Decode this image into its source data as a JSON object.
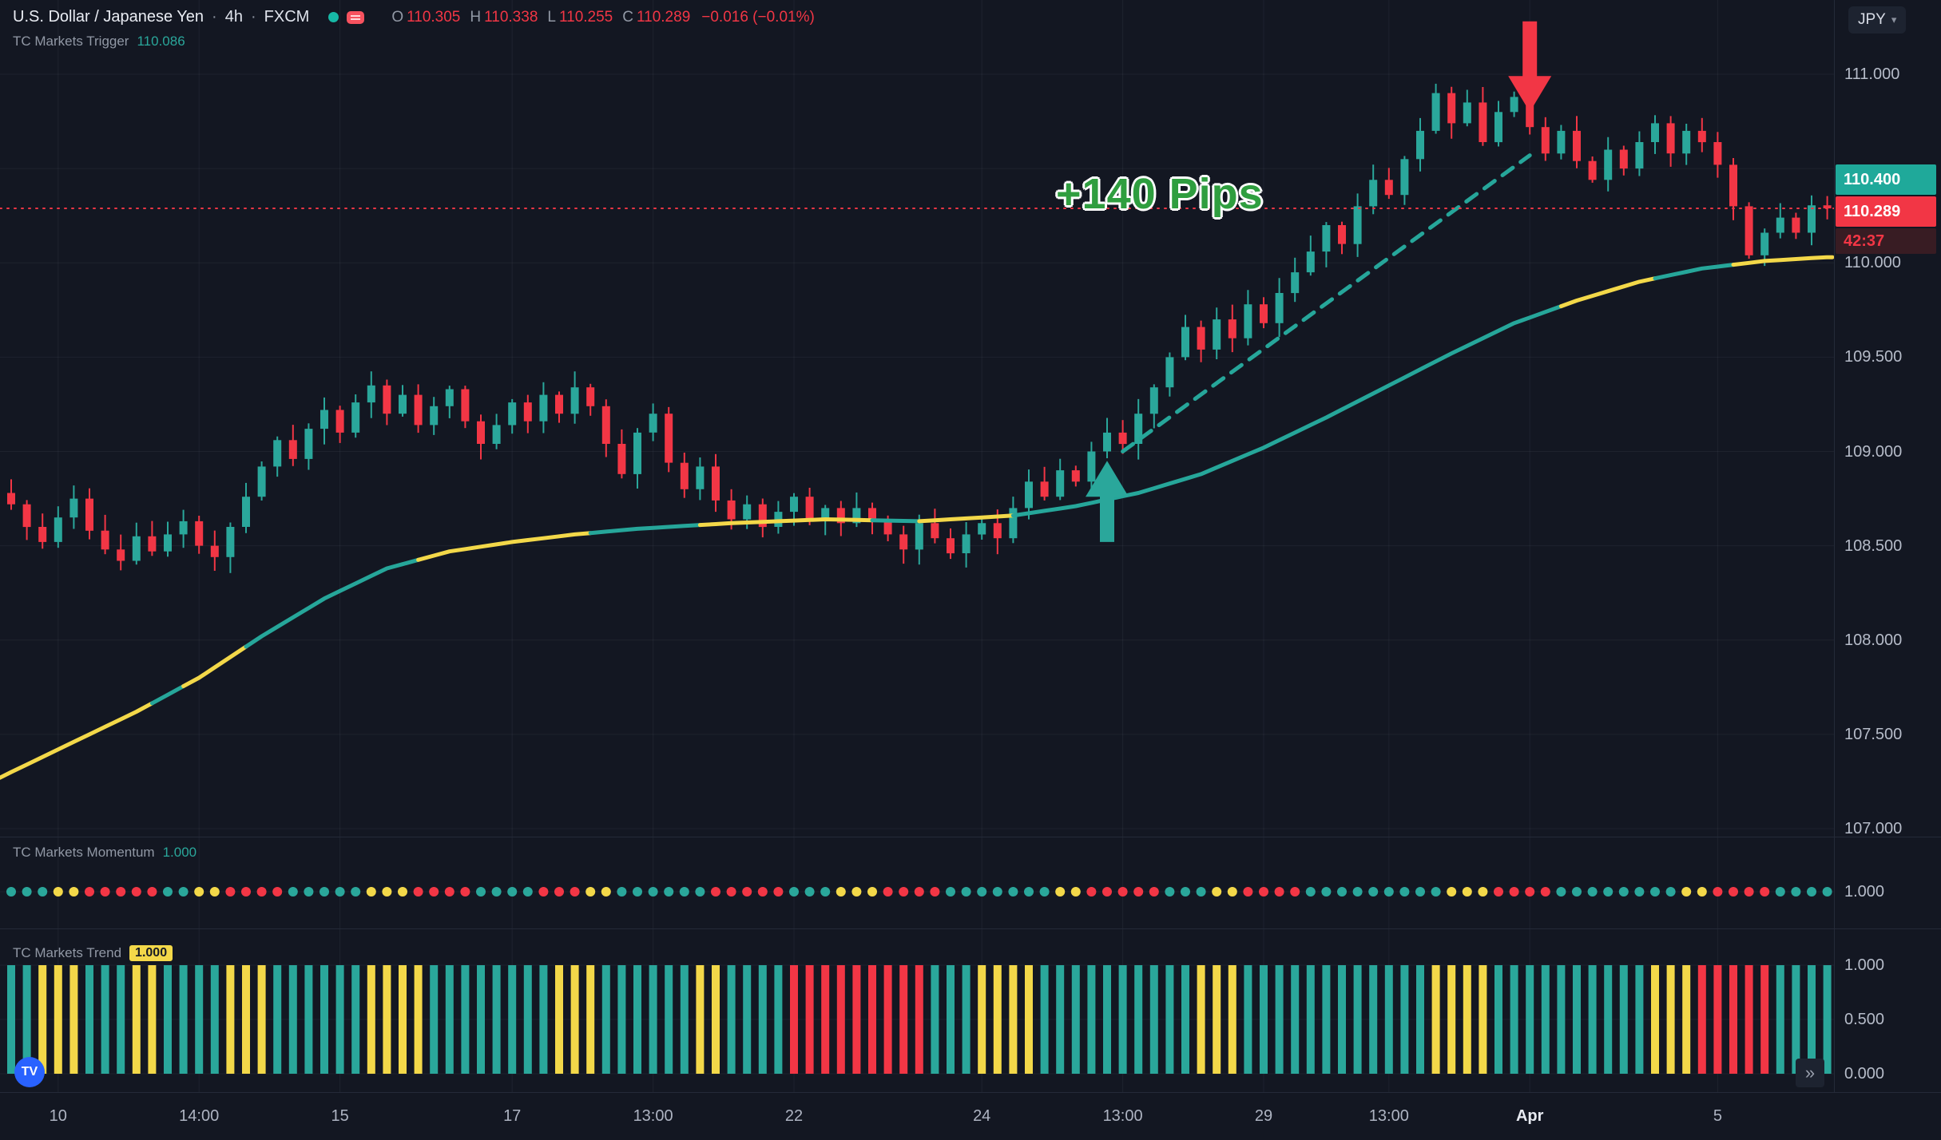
{
  "header": {
    "symbol": "U.S. Dollar / Japanese Yen",
    "dot": "·",
    "interval": "4h",
    "exchange": "FXCM",
    "ohlc": {
      "o_label": "O",
      "o_value": "110.305",
      "h_label": "H",
      "h_value": "110.338",
      "l_label": "L",
      "l_value": "110.255",
      "c_label": "C",
      "c_value": "110.289",
      "change": "−0.016 (−0.01%)"
    },
    "indicator_line": {
      "label": "TC Markets Trigger",
      "value": "110.086"
    }
  },
  "top_right": {
    "currency_button": "JPY",
    "caret": "▾"
  },
  "annotations": {
    "pips_label": "+140 Pips"
  },
  "price_axis": {
    "labels": [
      "111.000",
      "110.000",
      "109.500",
      "109.000",
      "108.500",
      "108.000",
      "107.500",
      "107.000"
    ],
    "alert_badge": "110.400",
    "last_price_badge": "110.289",
    "countdown": "42:37"
  },
  "momentum_pane": {
    "label": "TC Markets Momentum",
    "value": "1.000",
    "axis_labels": [
      [
        "1.000",
        1.0
      ]
    ]
  },
  "trend_pane": {
    "label": "TC Markets Trend",
    "value": "1.000",
    "axis_labels": [
      [
        "1.000",
        1.0
      ],
      [
        "0.500",
        0.5
      ],
      [
        "0.000",
        0.0
      ]
    ]
  },
  "time_axis": {
    "labels": [
      [
        3,
        "10"
      ],
      [
        12,
        "14:00"
      ],
      [
        21,
        "15"
      ],
      [
        32,
        "17"
      ],
      [
        41,
        "13:00"
      ],
      [
        50,
        "22"
      ],
      [
        62,
        "24"
      ],
      [
        71,
        "13:00"
      ],
      [
        80,
        "29"
      ],
      [
        88,
        "13:00"
      ],
      [
        97,
        "Apr"
      ],
      [
        109,
        "5"
      ]
    ]
  },
  "icons": {
    "logo": "TV",
    "scroll_right": "»"
  },
  "chart_data": {
    "type": "candlestick",
    "title": "U.S. Dollar / Japanese Yen · 4h · FXCM",
    "price_range": [
      107.0,
      111.0
    ],
    "grid_step": 0.5,
    "last_price": 110.289,
    "closes": [
      108.72,
      108.6,
      108.52,
      108.65,
      108.75,
      108.58,
      108.48,
      108.42,
      108.55,
      108.47,
      108.56,
      108.63,
      108.5,
      108.44,
      108.6,
      108.76,
      108.92,
      109.06,
      108.96,
      109.12,
      109.22,
      109.1,
      109.26,
      109.35,
      109.2,
      109.3,
      109.14,
      109.24,
      109.33,
      109.16,
      109.04,
      109.14,
      109.26,
      109.16,
      109.3,
      109.2,
      109.34,
      109.24,
      109.04,
      108.88,
      109.1,
      109.2,
      108.94,
      108.8,
      108.92,
      108.74,
      108.64,
      108.72,
      108.6,
      108.68,
      108.76,
      108.64,
      108.7,
      108.62,
      108.7,
      108.64,
      108.56,
      108.48,
      108.62,
      108.54,
      108.46,
      108.56,
      108.62,
      108.54,
      108.7,
      108.84,
      108.76,
      108.9,
      108.84,
      109.0,
      109.1,
      109.04,
      109.2,
      109.34,
      109.5,
      109.66,
      109.54,
      109.7,
      109.6,
      109.78,
      109.68,
      109.84,
      109.95,
      110.06,
      110.2,
      110.1,
      110.3,
      110.44,
      110.36,
      110.55,
      110.7,
      110.9,
      110.74,
      110.85,
      110.64,
      110.8,
      110.88,
      110.72,
      110.58,
      110.7,
      110.54,
      110.44,
      110.6,
      110.5,
      110.64,
      110.74,
      110.58,
      110.7,
      110.64,
      110.52,
      110.3,
      110.04,
      110.16,
      110.24,
      110.16,
      110.305,
      110.289
    ],
    "ma_keypoints": [
      [
        0,
        107.3
      ],
      [
        4,
        107.46
      ],
      [
        8,
        107.62
      ],
      [
        12,
        107.8
      ],
      [
        16,
        108.02
      ],
      [
        20,
        108.22
      ],
      [
        24,
        108.38
      ],
      [
        28,
        108.47
      ],
      [
        32,
        108.52
      ],
      [
        36,
        108.56
      ],
      [
        40,
        108.59
      ],
      [
        46,
        108.62
      ],
      [
        52,
        108.64
      ],
      [
        58,
        108.63
      ],
      [
        64,
        108.66
      ],
      [
        68,
        108.71
      ],
      [
        72,
        108.78
      ],
      [
        76,
        108.88
      ],
      [
        80,
        109.02
      ],
      [
        84,
        109.18
      ],
      [
        88,
        109.35
      ],
      [
        92,
        109.52
      ],
      [
        96,
        109.68
      ],
      [
        100,
        109.8
      ],
      [
        104,
        109.9
      ],
      [
        108,
        109.97
      ],
      [
        112,
        110.01
      ],
      [
        116,
        110.03
      ]
    ],
    "ma_yellow_ranges": [
      [
        0,
        8
      ],
      [
        11,
        14
      ],
      [
        26,
        36
      ],
      [
        44,
        54
      ],
      [
        58,
        63
      ],
      [
        99,
        104
      ],
      [
        110,
        116
      ]
    ],
    "trendline": {
      "from_bar": 71,
      "from_price": 109.0,
      "to_bar": 97,
      "to_price": 110.57
    },
    "arrows": [
      {
        "dir": "up",
        "bar": 70,
        "tip_price": 108.95,
        "tail_price": 108.52,
        "color": "#2aa79b"
      },
      {
        "dir": "down",
        "bar": 97,
        "tip_price": 110.8,
        "tail_price": 111.28,
        "color": "#f23645"
      }
    ],
    "momentum_rle": [
      [
        "t",
        3
      ],
      [
        "y",
        2
      ],
      [
        "r",
        5
      ],
      [
        "t",
        2
      ],
      [
        "y",
        2
      ],
      [
        "r",
        4
      ],
      [
        "t",
        5
      ],
      [
        "y",
        3
      ],
      [
        "r",
        4
      ],
      [
        "t",
        4
      ],
      [
        "r",
        3
      ],
      [
        "y",
        2
      ],
      [
        "t",
        6
      ],
      [
        "r",
        5
      ],
      [
        "t",
        3
      ],
      [
        "y",
        3
      ],
      [
        "r",
        4
      ],
      [
        "t",
        7
      ],
      [
        "y",
        2
      ],
      [
        "r",
        5
      ],
      [
        "t",
        3
      ],
      [
        "y",
        2
      ],
      [
        "r",
        4
      ],
      [
        "t",
        9
      ],
      [
        "y",
        3
      ],
      [
        "r",
        4
      ],
      [
        "t",
        8
      ],
      [
        "y",
        2
      ],
      [
        "r",
        4
      ],
      [
        "t",
        4
      ]
    ],
    "trend_rle": [
      [
        "t",
        2
      ],
      [
        "y",
        3
      ],
      [
        "t",
        3
      ],
      [
        "y",
        2
      ],
      [
        "t",
        4
      ],
      [
        "y",
        3
      ],
      [
        "t",
        6
      ],
      [
        "y",
        4
      ],
      [
        "t",
        8
      ],
      [
        "y",
        3
      ],
      [
        "t",
        6
      ],
      [
        "y",
        2
      ],
      [
        "t",
        4
      ],
      [
        "r",
        9
      ],
      [
        "t",
        3
      ],
      [
        "y",
        4
      ],
      [
        "t",
        10
      ],
      [
        "y",
        3
      ],
      [
        "t",
        12
      ],
      [
        "y",
        4
      ],
      [
        "t",
        10
      ],
      [
        "y",
        3
      ],
      [
        "r",
        5
      ],
      [
        "t",
        4
      ]
    ],
    "colors": {
      "up": "#2aa79b",
      "down": "#f23645",
      "yellow": "#f3d849",
      "teal": "#26a69a"
    }
  }
}
